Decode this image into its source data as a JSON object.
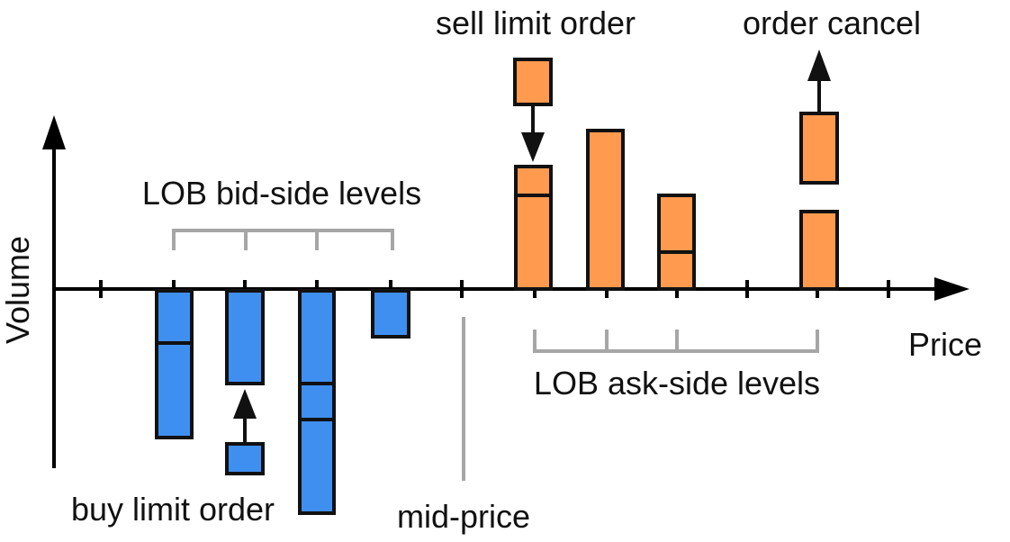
{
  "labels": {
    "y_axis": "Volume",
    "x_axis": "Price",
    "bid_levels": "LOB bid-side levels",
    "ask_levels": "LOB ask-side levels",
    "mid_price": "mid-price",
    "buy_limit_order": "buy limit order",
    "sell_limit_order": "sell limit order",
    "order_cancel": "order cancel"
  },
  "colors": {
    "bid": "#3f8ff0",
    "ask": "#ff9a4f",
    "bracket": "#a6a6a6",
    "outline": "#111111"
  }
}
